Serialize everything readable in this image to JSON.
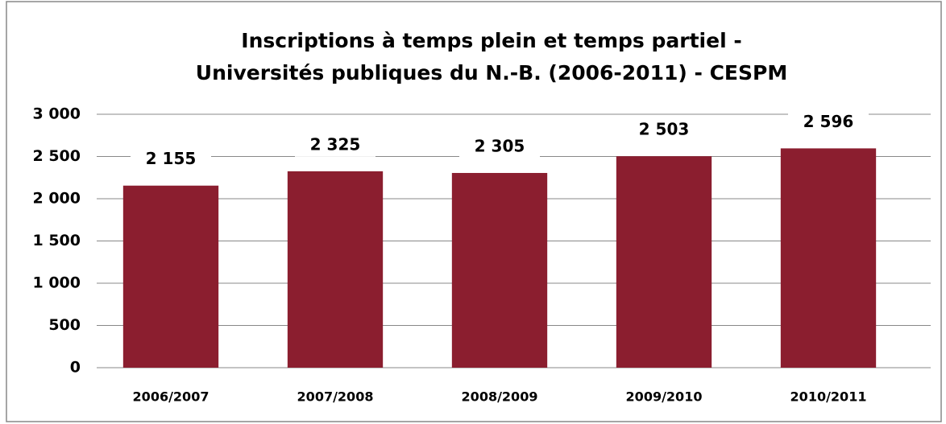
{
  "chart_data": {
    "type": "bar",
    "title": [
      "Inscriptions à temps plein et temps partiel -",
      "Universités publiques du N.-B. (2006-2011) - CESPM"
    ],
    "categories": [
      "2006/2007",
      "2007/2008",
      "2008/2009",
      "2009/2010",
      "2010/2011"
    ],
    "values": [
      2155,
      2325,
      2305,
      2503,
      2596
    ],
    "value_labels": [
      "2 155",
      "2 325",
      "2 305",
      "2 503",
      "2 596"
    ],
    "color": "#8b1e2f",
    "ylim": [
      0,
      3000
    ],
    "yticks": [
      0,
      500,
      {
        "value": 1000,
        "label": "1 000"
      },
      {
        "value": 1500,
        "label": "1 500"
      },
      {
        "value": 2000,
        "label": "2 000"
      },
      {
        "value": 2500,
        "label": "2 500"
      },
      {
        "value": 3000,
        "label": "3 000"
      }
    ],
    "grid": true
  }
}
